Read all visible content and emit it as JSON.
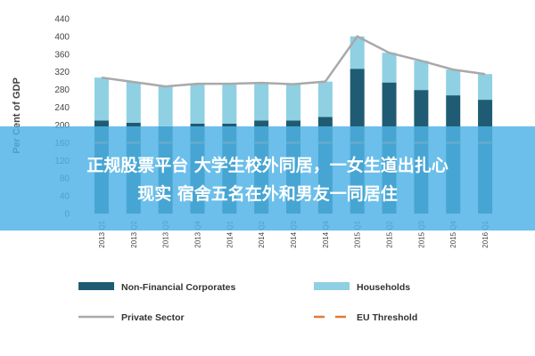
{
  "chart_data": {
    "type": "bar",
    "stacked": true,
    "ylabel": "Per Cent of GDP",
    "ylim": [
      0,
      440
    ],
    "yticks": [
      0,
      40,
      80,
      120,
      160,
      200,
      240,
      280,
      320,
      360,
      400,
      440
    ],
    "grid": false,
    "legend_position": "bottom",
    "categories": [
      "2013 Q1",
      "2013 Q2",
      "2013 Q3",
      "2013 Q4",
      "2014 Q1",
      "2014 Q2",
      "2014 Q3",
      "2014 Q4",
      "2015 Q1",
      "2015 Q2",
      "2015 Q3",
      "2015 Q4",
      "2016 Q1"
    ],
    "series": [
      {
        "name": "Non-Financial Corporates",
        "kind": "bar",
        "color": "#1f5c73",
        "values": [
          210,
          205,
          197,
          203,
          203,
          210,
          210,
          218,
          327,
          296,
          279,
          267,
          257
        ]
      },
      {
        "name": "Households",
        "kind": "bar",
        "color": "#8fd0e3",
        "values": [
          97,
          92,
          90,
          90,
          90,
          85,
          82,
          80,
          73,
          67,
          66,
          58,
          58
        ]
      },
      {
        "name": "Private Sector",
        "kind": "line",
        "color": "#a9a9a9",
        "values": [
          307,
          297,
          287,
          293,
          293,
          295,
          292,
          298,
          400,
          363,
          345,
          325,
          315
        ]
      },
      {
        "name": "EU Threshold",
        "kind": "dashed-line",
        "color": "#e07b39",
        "values": [
          160,
          160,
          160,
          160,
          160,
          160,
          160,
          160,
          160,
          160,
          160,
          160,
          160
        ]
      }
    ]
  },
  "overlay": {
    "line1": "正规股票平台 大学生校外同居，一女生道出扎心",
    "line2": "现实 宿舍五名在外和男友一同居住"
  }
}
